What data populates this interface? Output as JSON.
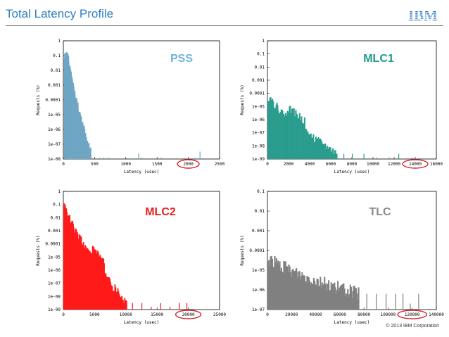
{
  "header": {
    "title": "Total Latency Profile",
    "logo_text": "IBM",
    "copyright": "© 2013 IBM Corporation"
  },
  "colors": {
    "title": "#2d7fc1",
    "logo": "#1f70c1",
    "highlight": "#d2232a"
  },
  "chart_data": [
    {
      "type": "bar",
      "label": "PSS",
      "label_color": "#6fb3d8",
      "bar_color": "#6ea6c4",
      "xlabel": "Latency (usec)",
      "ylabel": "Requests (%)",
      "scale": "log",
      "xlim": [
        0,
        2500
      ],
      "ylim_exp": [
        -8,
        0
      ],
      "x_ticks": [
        0,
        500,
        1000,
        1500,
        2000,
        2500
      ],
      "x_tick_labels": [
        "0",
        "500",
        "1000",
        "1500",
        "2000",
        "2500"
      ],
      "y_tick_labels": [
        "1",
        "0.1",
        "0.01",
        "0.001",
        "0.0001",
        "1e-05",
        "1e-06",
        "1e-07",
        "1e-08"
      ],
      "highlight_tick": "2000",
      "body": {
        "x_start": 10,
        "x_end": 430,
        "peak_exp": -1.1,
        "peak_x": 70,
        "end_exp": -7.6
      },
      "spikes": [
        [
          580,
          -7.9
        ],
        [
          640,
          -7.9
        ],
        [
          720,
          -7.9
        ],
        [
          1200,
          -7.6
        ],
        [
          1250,
          -7.9
        ],
        [
          1500,
          -7.9
        ],
        [
          1560,
          -7.9
        ],
        [
          2100,
          -7.9
        ],
        [
          2180,
          -7.5
        ]
      ]
    },
    {
      "type": "bar",
      "label": "MLC1",
      "label_color": "#1e9a8c",
      "bar_color": "#2a9d8f",
      "xlabel": "Latency (usec)",
      "ylabel": "Requests (%)",
      "scale": "log",
      "xlim": [
        0,
        16000
      ],
      "ylim_exp": [
        -9,
        0
      ],
      "x_ticks": [
        0,
        2000,
        4000,
        6000,
        8000,
        10000,
        12000,
        14000,
        16000
      ],
      "x_tick_labels": [
        "0",
        "2000",
        "4000",
        "6000",
        "8000",
        "10000",
        "12000",
        "14000",
        "16000"
      ],
      "y_tick_labels": [
        "1",
        "0.1",
        "0.01",
        "0.001",
        "0.0001",
        "1e-05",
        "1e-06",
        "1e-07",
        "1e-08",
        "1e-09"
      ],
      "highlight_tick": "14000",
      "body": {
        "x_start": 0,
        "x_end": 6500,
        "peak_exp": -4.3,
        "peak_x": 200,
        "end_exp": -8.6
      },
      "spikes": [
        [
          7200,
          -8.6
        ],
        [
          8000,
          -8.6
        ],
        [
          9100,
          -8.6
        ],
        [
          10300,
          -8.9
        ],
        [
          11500,
          -8.9
        ],
        [
          12400,
          -8.6
        ],
        [
          13700,
          -8.9
        ]
      ]
    },
    {
      "type": "bar",
      "label": "MLC2",
      "label_color": "#e8201d",
      "bar_color": "#ff1a1a",
      "xlabel": "Latency (usec)",
      "ylabel": "Requests (%)",
      "scale": "log",
      "xlim": [
        0,
        25000
      ],
      "ylim_exp": [
        -9,
        0
      ],
      "x_ticks": [
        0,
        5000,
        10000,
        15000,
        20000,
        25000
      ],
      "x_tick_labels": [
        "0",
        "5000",
        "10000",
        "15000",
        "20000",
        "25000"
      ],
      "y_tick_labels": [
        "1",
        "0.1",
        "0.01",
        "0.001",
        "0.0001",
        "1e-05",
        "1e-06",
        "1e-07",
        "1e-08",
        "1e-09"
      ],
      "highlight_tick": "20000",
      "body": {
        "x_start": 0,
        "x_end": 10000,
        "peak_exp": -1.1,
        "peak_x": 200,
        "end_exp": -8.5
      },
      "spikes": [
        [
          11000,
          -8.5
        ],
        [
          12500,
          -8.5
        ],
        [
          14000,
          -8.8
        ],
        [
          15500,
          -8.5
        ],
        [
          17000,
          -8.8
        ],
        [
          18500,
          -8.5
        ],
        [
          19700,
          -8.5
        ]
      ]
    },
    {
      "type": "bar",
      "label": "TLC",
      "label_color": "#8c8c8c",
      "bar_color": "#808080",
      "xlabel": "Latency (usec)",
      "ylabel": "Requests (%)",
      "scale": "log",
      "xlim": [
        0,
        140000
      ],
      "ylim_exp": [
        -7,
        -1
      ],
      "x_ticks": [
        0,
        20000,
        40000,
        60000,
        80000,
        100000,
        120000,
        140000
      ],
      "x_tick_labels": [
        "0",
        "20000",
        "40000",
        "60000",
        "80000",
        "100000",
        "120000",
        "140000"
      ],
      "y_tick_labels": [
        "0.1",
        "0.01",
        "0.001",
        "0.0001",
        "1e-05",
        "1e-06",
        "1e-07"
      ],
      "highlight_tick": "120000",
      "body": {
        "x_start": 0,
        "x_end": 75000,
        "peak_exp": -4.5,
        "peak_x": 4000,
        "end_exp": -6.2
      },
      "spikes": [
        [
          82000,
          -6.2
        ],
        [
          90000,
          -6.2
        ],
        [
          98000,
          -6.2
        ],
        [
          106000,
          -6.2
        ],
        [
          112000,
          -6.2
        ],
        [
          118000,
          -6.7
        ],
        [
          125000,
          -6.2
        ]
      ]
    }
  ]
}
